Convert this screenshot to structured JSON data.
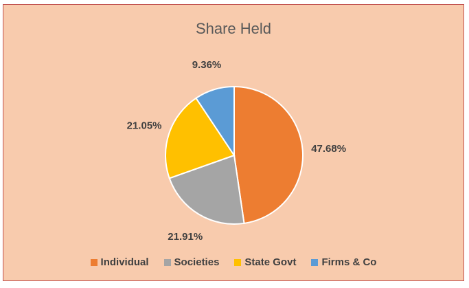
{
  "chart_data": {
    "type": "pie",
    "title": "Share Held",
    "categories": [
      "Individual",
      "Societies",
      "State Govt",
      "Firms & Co"
    ],
    "values": [
      47.68,
      21.91,
      21.05,
      9.36
    ],
    "labels": [
      "47.68%",
      "21.91%",
      "21.05%",
      "9.36%"
    ],
    "colors": [
      "#ed7d31",
      "#a5a5a5",
      "#ffc000",
      "#5b9bd5"
    ],
    "legend_position": "bottom"
  }
}
